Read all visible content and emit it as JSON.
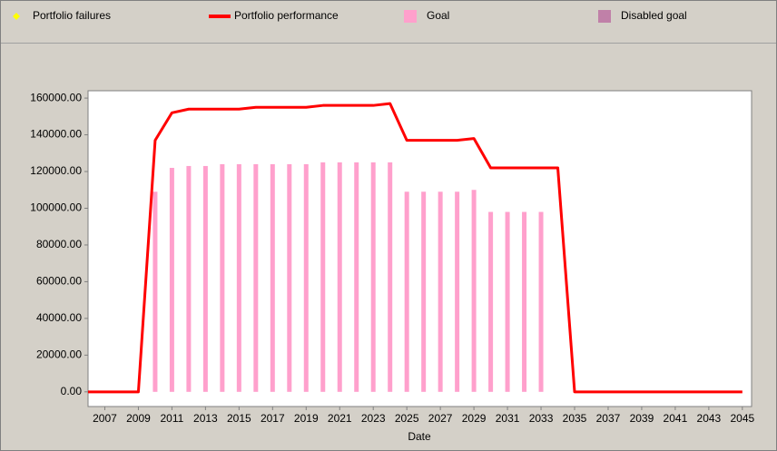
{
  "chart_data": {
    "type": "combo",
    "x_label": "Date",
    "x": [
      2006,
      2007,
      2008,
      2009,
      2010,
      2011,
      2012,
      2013,
      2014,
      2015,
      2016,
      2017,
      2018,
      2019,
      2020,
      2021,
      2022,
      2023,
      2024,
      2025,
      2026,
      2027,
      2028,
      2029,
      2030,
      2031,
      2032,
      2033,
      2034,
      2035,
      2036,
      2037,
      2038,
      2039,
      2040,
      2041,
      2042,
      2043,
      2044,
      2045
    ],
    "series": [
      {
        "name": "Portfolio failures",
        "type": "scatter",
        "color": "#ffff00",
        "values": [
          null,
          null,
          null,
          null,
          null,
          null,
          null,
          null,
          null,
          null,
          null,
          null,
          null,
          null,
          null,
          null,
          null,
          null,
          null,
          null,
          null,
          null,
          null,
          null,
          null,
          null,
          null,
          null,
          null,
          null,
          null,
          null,
          null,
          null,
          null,
          null,
          null,
          null,
          null,
          null
        ]
      },
      {
        "name": "Portfolio performance",
        "type": "line",
        "color": "#ff0000",
        "values": [
          0,
          0,
          0,
          0,
          137000,
          152000,
          154000,
          154000,
          154000,
          154000,
          155000,
          155000,
          155000,
          155000,
          156000,
          156000,
          156000,
          156000,
          157000,
          137000,
          137000,
          137000,
          137000,
          138000,
          122000,
          122000,
          122000,
          122000,
          122000,
          0,
          0,
          0,
          0,
          0,
          0,
          0,
          0,
          0,
          0,
          0
        ]
      },
      {
        "name": "Goal",
        "type": "bar",
        "color": "#ffa0cc",
        "values": [
          null,
          null,
          null,
          null,
          109000,
          122000,
          123000,
          123000,
          124000,
          124000,
          124000,
          124000,
          124000,
          124000,
          125000,
          125000,
          125000,
          125000,
          125000,
          109000,
          109000,
          109000,
          109000,
          110000,
          98000,
          98000,
          98000,
          98000,
          null,
          null,
          null,
          null,
          null,
          null,
          null,
          null,
          null,
          null,
          null,
          null
        ]
      },
      {
        "name": "Disabled goal",
        "type": "bar",
        "color": "#c080a8",
        "values": [
          null,
          null,
          null,
          null,
          null,
          null,
          null,
          null,
          null,
          null,
          null,
          null,
          null,
          null,
          null,
          null,
          null,
          null,
          null,
          null,
          null,
          null,
          null,
          null,
          null,
          null,
          null,
          null,
          null,
          null,
          null,
          null,
          null,
          null,
          null,
          null,
          null,
          null,
          null,
          null
        ]
      }
    ],
    "xlim": [
      2006,
      2045.55
    ],
    "xticks": [
      2007,
      2009,
      2011,
      2013,
      2015,
      2017,
      2019,
      2021,
      2023,
      2025,
      2027,
      2029,
      2031,
      2033,
      2035,
      2037,
      2039,
      2041,
      2043,
      2045
    ],
    "ylim": [
      -8000,
      164000
    ],
    "yticks": [
      {
        "value": 0,
        "label": "0.00"
      },
      {
        "value": 20000,
        "label": "20000.00"
      },
      {
        "value": 40000,
        "label": "40000.00"
      },
      {
        "value": 60000,
        "label": "60000.00"
      },
      {
        "value": 80000,
        "label": "80000.00"
      },
      {
        "value": 100000,
        "label": "100000.00"
      },
      {
        "value": 120000,
        "label": "120000.00"
      },
      {
        "value": 140000,
        "label": "140000.00"
      },
      {
        "value": 160000,
        "label": "160000.00"
      }
    ],
    "grid": false
  }
}
